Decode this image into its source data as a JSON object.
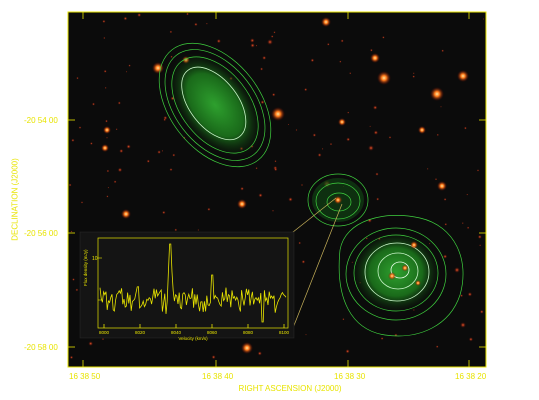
{
  "figure": {
    "y_axis_title": "DECLINATION  (J2000)",
    "x_axis_title": "RIGHT ASCENSION  (J2000)",
    "y_ticks": [
      "-20 54 00",
      "-20 56 00",
      "-20 58 00"
    ],
    "x_ticks": [
      "16 38 50",
      "16 38 40",
      "16 38 30",
      "16 38 20"
    ],
    "frame_color": "#e8e400",
    "contour_color": "#3fd13f"
  },
  "inset": {
    "y_axis_label": "Flux density (mJy)",
    "x_axis_label": "Velocity (km/s)",
    "y_tick": "10",
    "x_ticks": [
      "8000",
      "8020",
      "8040",
      "8060",
      "8080",
      "8100"
    ],
    "line_color": "#e8e400"
  }
}
